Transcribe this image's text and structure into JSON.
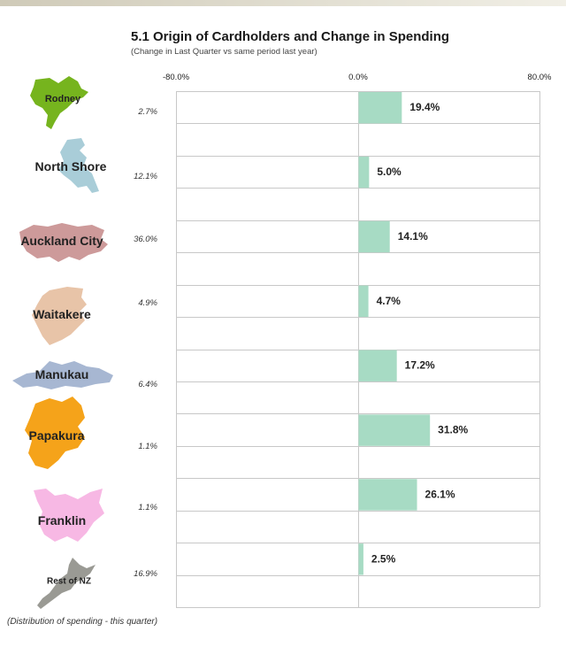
{
  "chart_data": {
    "type": "bar",
    "orientation": "horizontal",
    "title": "5.1 Origin of Cardholders and Change in Spending",
    "subtitle": "(Change in Last Quarter vs same period last year)",
    "xlim": [
      -80,
      80
    ],
    "tick_labels": [
      "-80.0%",
      "0.0%",
      "80.0%"
    ],
    "tick_values": [
      -80,
      0,
      80
    ],
    "categories": [
      "Rodney",
      "North Shore",
      "Auckland City",
      "Waitakere",
      "Manukau",
      "Papakura",
      "Franklin",
      "Rest of NZ"
    ],
    "values": [
      19.4,
      5.0,
      14.1,
      4.7,
      17.2,
      31.8,
      26.1,
      2.5
    ],
    "value_labels": [
      "19.4%",
      "5.0%",
      "14.1%",
      "4.7%",
      "17.2%",
      "31.8%",
      "26.1%",
      "2.5%"
    ],
    "shares": [
      "2.7%",
      "12.1%",
      "36.0%",
      "4.9%",
      "6.4%",
      "1.1%",
      "1.1%",
      "16.9%"
    ],
    "footnote": "(Distribution of spending - this quarter)",
    "bar_color": "#a7dbc4",
    "grid": true
  },
  "regions": [
    {
      "name": "Rodney",
      "icon": "rodney-map-icon",
      "color": "#76b41e"
    },
    {
      "name": "North Shore",
      "icon": "north-shore-map-icon",
      "color": "#a9cdd8"
    },
    {
      "name": "Auckland City",
      "icon": "auckland-city-map-icon",
      "color": "#cd9a9a"
    },
    {
      "name": "Waitakere",
      "icon": "waitakere-map-icon",
      "color": "#e8c4a8"
    },
    {
      "name": "Manukau",
      "icon": "manukau-map-icon",
      "color": "#a7b7d2"
    },
    {
      "name": "Papakura",
      "icon": "papakura-map-icon",
      "color": "#f5a31a"
    },
    {
      "name": "Franklin",
      "icon": "franklin-map-icon",
      "color": "#f7b8e4"
    },
    {
      "name": "Rest of NZ",
      "icon": "rest-of-nz-map-icon",
      "color": "#9a9a94"
    }
  ]
}
